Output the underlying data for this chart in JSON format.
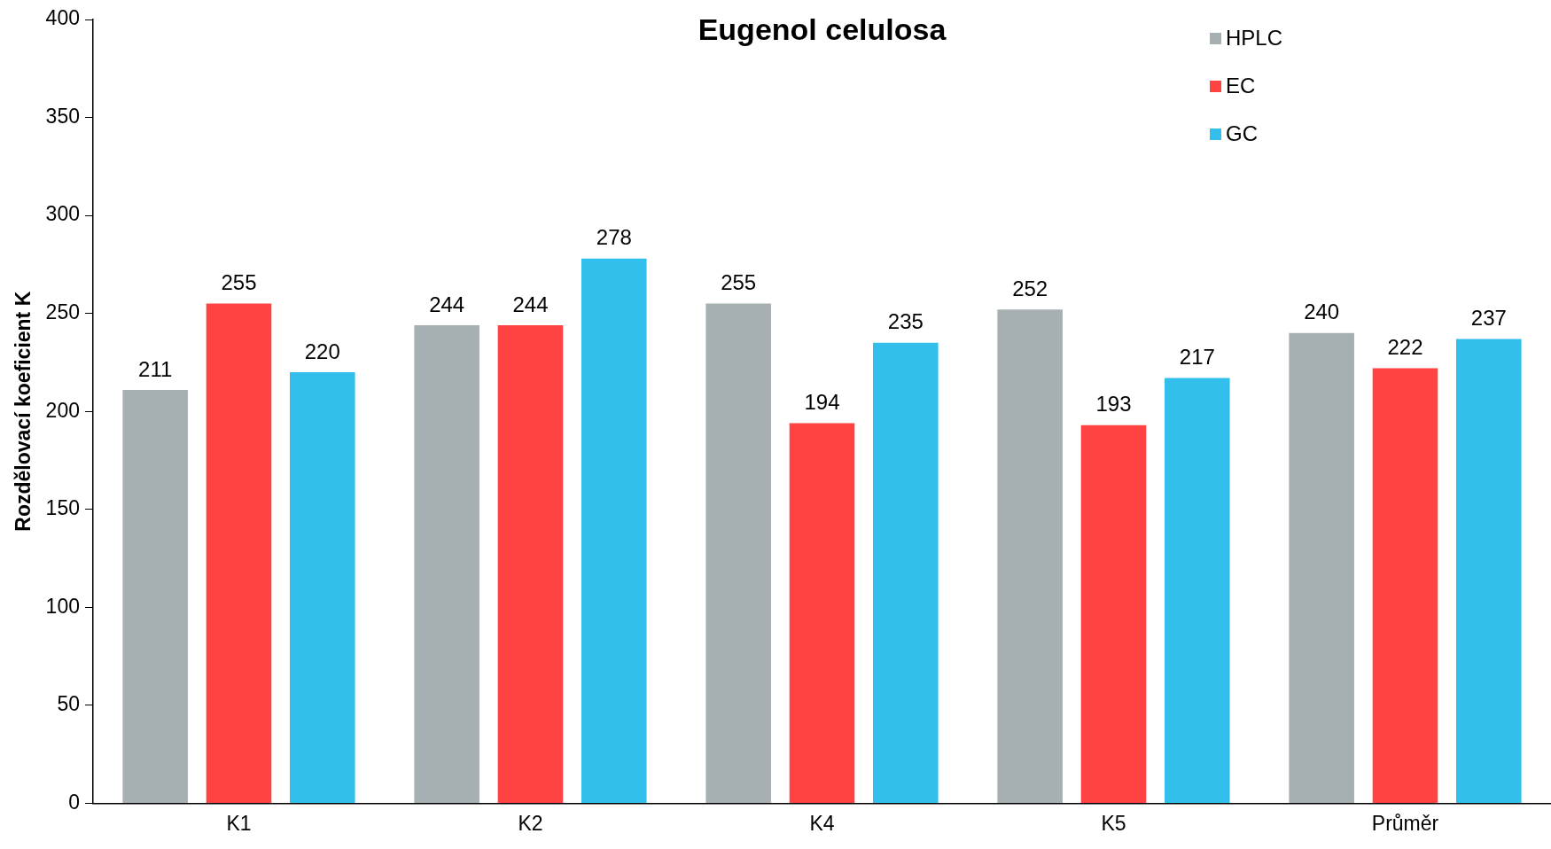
{
  "chart_data": {
    "type": "bar",
    "title": "Eugenol celulosa",
    "ylabel": "Rozdělovací koeficient K",
    "categories": [
      "K1",
      "K2",
      "K4",
      "K5",
      "Průměr"
    ],
    "series": [
      {
        "name": "HPLC",
        "color": "#a6b0b2",
        "values": [
          211,
          244,
          255,
          252,
          240
        ]
      },
      {
        "name": "EC",
        "color": "#ff4343",
        "values": [
          255,
          244,
          194,
          193,
          222
        ]
      },
      {
        "name": "GC",
        "color": "#33bfeb",
        "values": [
          220,
          278,
          235,
          217,
          237
        ]
      }
    ],
    "ylim": [
      0,
      400
    ],
    "yticks": [
      0,
      50,
      100,
      150,
      200,
      250,
      300,
      350,
      400
    ],
    "grid": false,
    "legend": "top right",
    "data_labels": true
  }
}
